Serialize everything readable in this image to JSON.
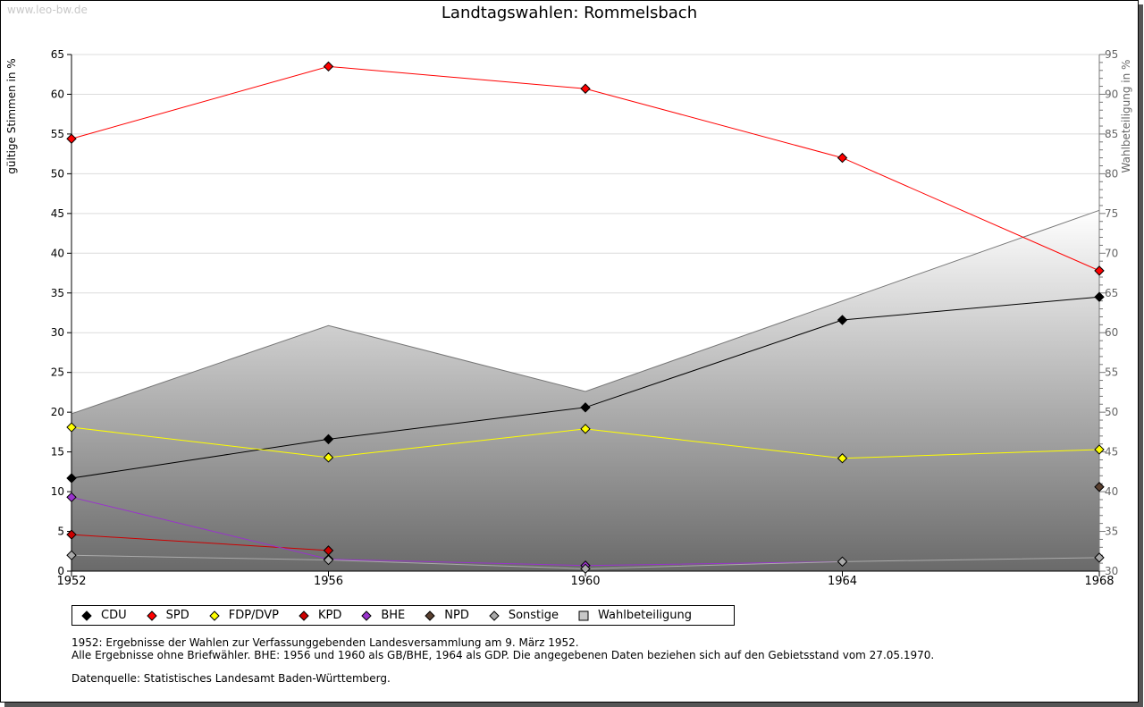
{
  "watermark": "www.leo-bw.de",
  "chart_data": {
    "type": "line",
    "title": "Landtagswahlen: Rommelsbach",
    "ylabel": "gültige Stimmen in %",
    "y2label": "Wahlbeteiligung in %",
    "ylim": [
      0,
      65
    ],
    "y2lim": [
      30,
      95
    ],
    "yticks": [
      "0",
      "5",
      "10",
      "15",
      "20",
      "25",
      "30",
      "35",
      "40",
      "45",
      "50",
      "55",
      "60",
      "65"
    ],
    "y2ticks": [
      "30",
      "35",
      "40",
      "45",
      "50",
      "55",
      "60",
      "65",
      "70",
      "75",
      "80",
      "85",
      "90",
      "95"
    ],
    "x": [
      "1952",
      "1956",
      "1960",
      "1964",
      "1968"
    ],
    "grid": true,
    "legend_position": "bottom",
    "series": [
      {
        "name": "CDU",
        "color": "#000000",
        "values": [
          11.7,
          16.6,
          20.6,
          31.6,
          34.5
        ]
      },
      {
        "name": "SPD",
        "color": "#ff0000",
        "values": [
          54.4,
          63.5,
          60.7,
          52.0,
          37.8
        ]
      },
      {
        "name": "FDP/DVP",
        "color": "#ffff00",
        "values": [
          18.1,
          14.3,
          17.9,
          14.2,
          15.3
        ]
      },
      {
        "name": "KPD",
        "color": "#cc0000",
        "values": [
          4.6,
          2.6,
          null,
          null,
          null
        ]
      },
      {
        "name": "BHE",
        "color": "#9933cc",
        "values": [
          9.3,
          1.5,
          0.7,
          1.2,
          null
        ]
      },
      {
        "name": "NPD",
        "color": "#5a4030",
        "values": [
          null,
          null,
          null,
          null,
          10.6
        ]
      },
      {
        "name": "Sonstige",
        "color": "#aaaaaa",
        "values": [
          2.0,
          1.4,
          0.3,
          1.2,
          1.7
        ]
      }
    ],
    "turnout": {
      "name": "Wahlbeteiligung",
      "axis": "right",
      "values": [
        49.8,
        60.9,
        52.6,
        64.0,
        75.4
      ]
    }
  },
  "notes": [
    "1952: Ergebnisse der Wahlen zur Verfassunggebenden Landesversammlung am 9. März 1952.",
    "Alle Ergebnisse ohne Briefwähler. BHE: 1956 und 1960 als GB/BHE, 1964 als GDP. Die angegebenen Daten beziehen sich auf den Gebietsstand vom 27.05.1970.",
    "Datenquelle: Statistisches Landesamt Baden-Württemberg."
  ]
}
